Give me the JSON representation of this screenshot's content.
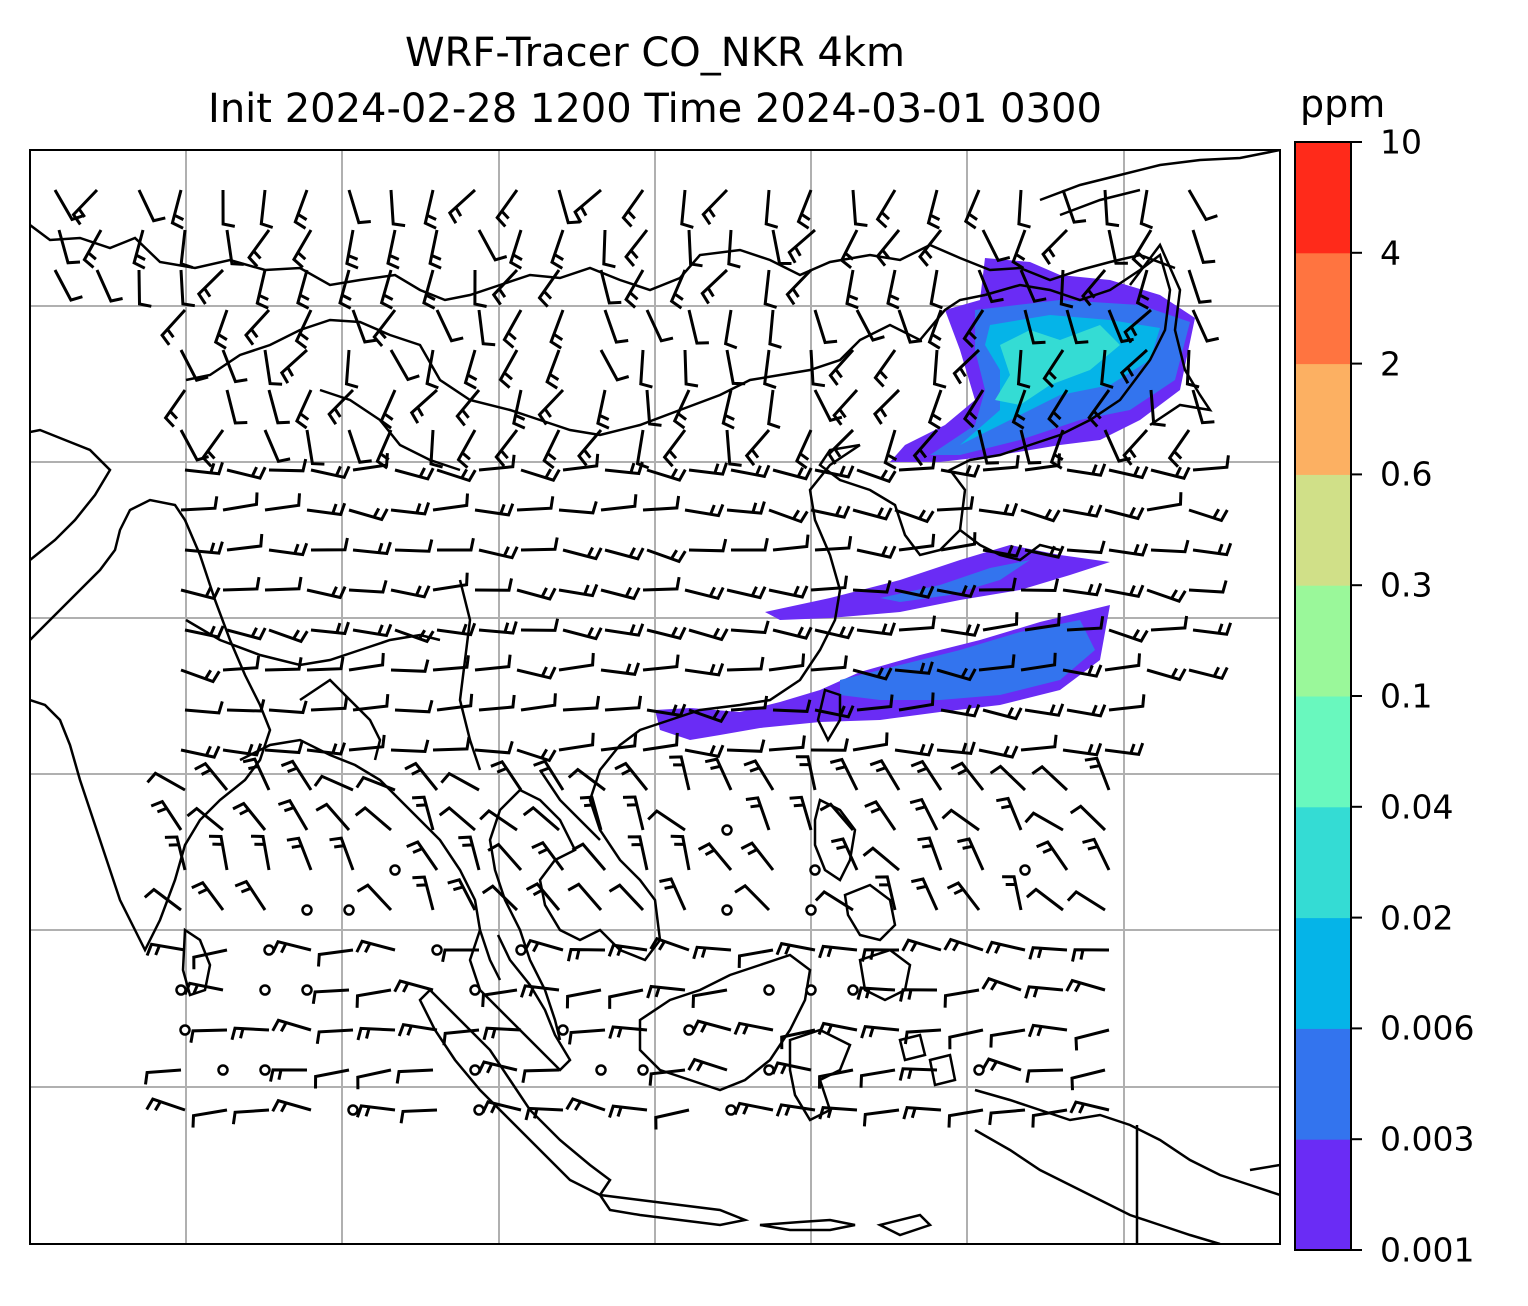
{
  "title": {
    "line1": "WRF-Tracer CO_NKR 4km",
    "line2": "Init 2024-02-28 1200 Time 2024-03-01 0300"
  },
  "colorbar": {
    "unit": "ppm",
    "ticks": [
      "0.001",
      "0.003",
      "0.006",
      "0.02",
      "0.04",
      "0.1",
      "0.3",
      "0.6",
      "2",
      "4",
      "10"
    ],
    "colors": [
      "#6a2cf5",
      "#3374ee",
      "#05b4e8",
      "#34dcd4",
      "#69f8be",
      "#9af89a",
      "#d0e088",
      "#fcb062",
      "#ff7440",
      "#ff2a1a"
    ]
  },
  "map": {
    "gridlines": true,
    "tracer_plume_colors": [
      "#6a2cf5",
      "#3374ee",
      "#05b4e8",
      "#34dcd4"
    ],
    "wind_barbs": true,
    "coastlines": true
  }
}
